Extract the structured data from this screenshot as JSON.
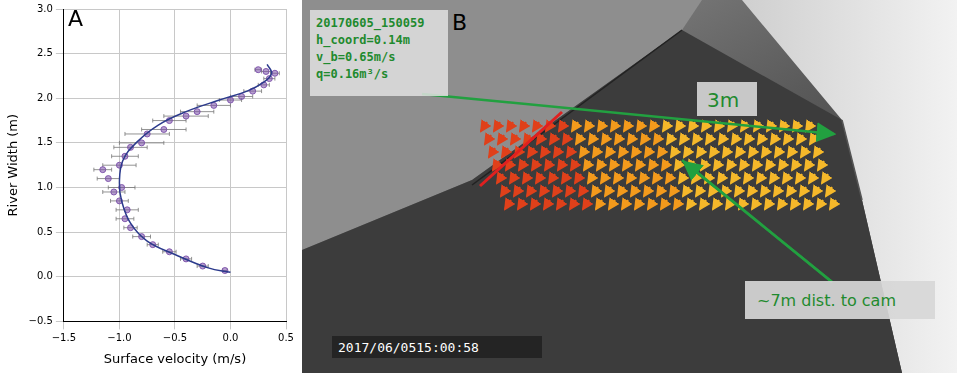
{
  "chart_data": {
    "type": "scatter",
    "panel_label": "A",
    "x_label": "Surface velocity (m/s)",
    "y_label": "River Width (m)",
    "xlim": [
      -1.5,
      0.5
    ],
    "xticks": [
      {
        "value": -1.5,
        "label": "−1.5"
      },
      {
        "value": -1.0,
        "label": "−1.0"
      },
      {
        "value": -0.5,
        "label": "−0.5"
      },
      {
        "value": 0.0,
        "label": "0.0"
      },
      {
        "value": 0.5,
        "label": "0.5"
      }
    ],
    "ylim": [
      -0.5,
      3.0
    ],
    "yticks": [
      {
        "value": -0.5,
        "label": "−0.5"
      },
      {
        "value": 0.0,
        "label": "0.0"
      },
      {
        "value": 0.5,
        "label": "0.5"
      },
      {
        "value": 1.0,
        "label": "1.0"
      },
      {
        "value": 1.5,
        "label": "1.5"
      },
      {
        "value": 2.0,
        "label": "2.0"
      },
      {
        "value": 2.5,
        "label": "2.5"
      },
      {
        "value": 3.0,
        "label": "3.0"
      }
    ],
    "grid": true,
    "series": [
      {
        "type": "scatter",
        "marker": "circle",
        "color": "#7a4fa8",
        "x": [
          -0.05,
          -0.25,
          -0.4,
          -0.55,
          -0.7,
          -0.8,
          -0.9,
          -0.95,
          -0.93,
          -1.0,
          -1.05,
          -0.98,
          -1.1,
          -1.15,
          -1.0,
          -0.95,
          -0.9,
          -0.8,
          -0.75,
          -0.6,
          -0.55,
          -0.4,
          -0.3,
          -0.15,
          0.0,
          0.1,
          0.2,
          0.3,
          0.35,
          0.4,
          0.32,
          0.25
        ],
        "values": [
          0.07,
          0.12,
          0.2,
          0.28,
          0.36,
          0.45,
          0.55,
          0.65,
          0.75,
          0.85,
          0.95,
          1.0,
          1.1,
          1.2,
          1.25,
          1.35,
          1.45,
          1.5,
          1.6,
          1.65,
          1.75,
          1.8,
          1.85,
          1.92,
          1.98,
          2.02,
          2.08,
          2.15,
          2.22,
          2.28,
          2.3,
          2.32
        ],
        "x_error": [
          0.02,
          0.05,
          0.05,
          0.06,
          0.05,
          0.08,
          0.06,
          0.08,
          0.1,
          0.08,
          0.1,
          0.12,
          0.1,
          0.08,
          0.15,
          0.12,
          0.15,
          0.2,
          0.2,
          0.2,
          0.15,
          0.2,
          0.15,
          0.15,
          0.1,
          0.1,
          0.08,
          0.05,
          0.05,
          0.04,
          0.04,
          0.03
        ]
      },
      {
        "type": "line",
        "line_style": "solid",
        "color": "#2b3a8c",
        "x": [
          0.0,
          -0.2,
          -0.5,
          -0.75,
          -0.9,
          -0.98,
          -1.0,
          -0.97,
          -0.85,
          -0.65,
          -0.4,
          -0.1,
          0.15,
          0.3,
          0.37,
          0.33
        ],
        "values": [
          0.05,
          0.1,
          0.25,
          0.4,
          0.6,
          0.85,
          1.05,
          1.3,
          1.5,
          1.7,
          1.85,
          1.98,
          2.08,
          2.18,
          2.28,
          2.38
        ]
      }
    ]
  },
  "panel_b": {
    "label": "B",
    "overlay_lines": [
      "20170605_150059",
      "h_coord=0.14m",
      "v_b=0.65m/s",
      "q=0.16m³/s"
    ],
    "width_annotation": "3m",
    "distance_annotation": "~7m dist. to cam",
    "timestamp": "2017/06/0515:00:58"
  }
}
